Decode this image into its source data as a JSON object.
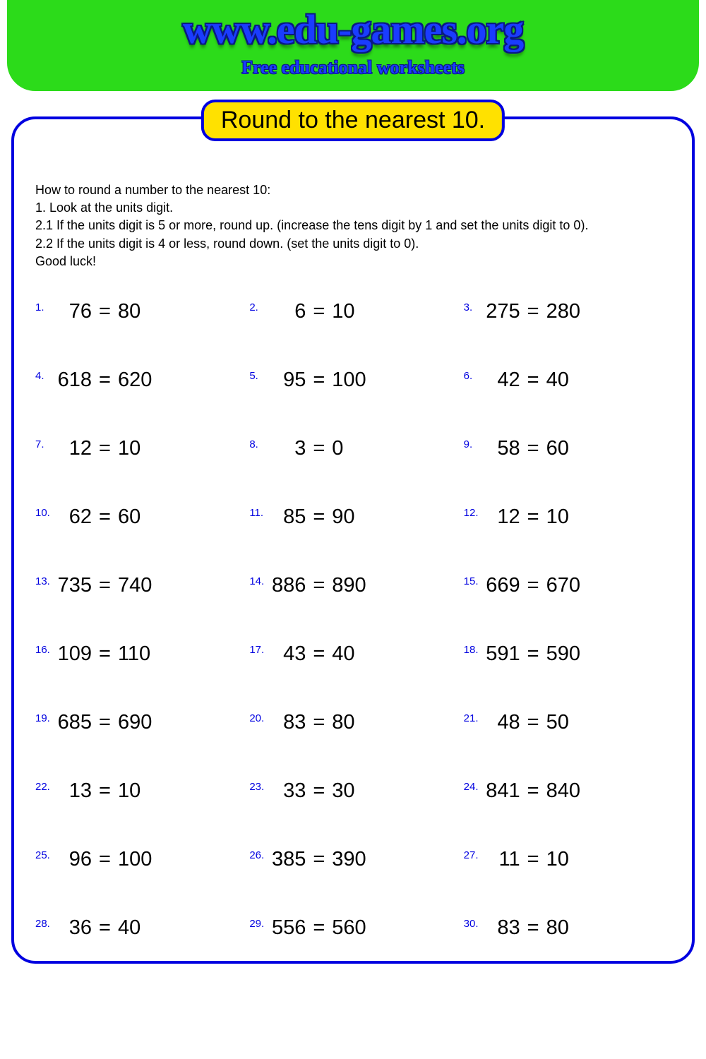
{
  "header": {
    "site_title": "www.edu-games.org",
    "subtitle": "Free educational worksheets"
  },
  "colors": {
    "header_bg": "#2cdb1a",
    "title_blue": "#1a3cff",
    "border_blue": "#0000e0",
    "badge_bg": "#ffe100",
    "number_blue": "#0000e0",
    "text": "#000000",
    "page_bg": "#ffffff"
  },
  "badge": "Round to the nearest 10.",
  "instructions": [
    "How to round a number to the nearest 10:",
    "1. Look at the units digit.",
    "2.1 If the units digit is 5 or more, round up. (increase the tens digit by 1 and set the units digit to 0).",
    "2.2 If the units digit is 4 or less, round down. (set the units digit to 0).",
    "Good luck!"
  ],
  "problems": [
    {
      "n": "1.",
      "lhs": "76",
      "rhs": "80"
    },
    {
      "n": "2.",
      "lhs": "6",
      "rhs": "10"
    },
    {
      "n": "3.",
      "lhs": "275",
      "rhs": "280"
    },
    {
      "n": "4.",
      "lhs": "618",
      "rhs": "620"
    },
    {
      "n": "5.",
      "lhs": "95",
      "rhs": "100"
    },
    {
      "n": "6.",
      "lhs": "42",
      "rhs": "40"
    },
    {
      "n": "7.",
      "lhs": "12",
      "rhs": "10"
    },
    {
      "n": "8.",
      "lhs": "3",
      "rhs": "0"
    },
    {
      "n": "9.",
      "lhs": "58",
      "rhs": "60"
    },
    {
      "n": "10.",
      "lhs": "62",
      "rhs": "60"
    },
    {
      "n": "11.",
      "lhs": "85",
      "rhs": "90"
    },
    {
      "n": "12.",
      "lhs": "12",
      "rhs": "10"
    },
    {
      "n": "13.",
      "lhs": "735",
      "rhs": "740"
    },
    {
      "n": "14.",
      "lhs": "886",
      "rhs": "890"
    },
    {
      "n": "15.",
      "lhs": "669",
      "rhs": "670"
    },
    {
      "n": "16.",
      "lhs": "109",
      "rhs": "110"
    },
    {
      "n": "17.",
      "lhs": "43",
      "rhs": "40"
    },
    {
      "n": "18.",
      "lhs": "591",
      "rhs": "590"
    },
    {
      "n": "19.",
      "lhs": "685",
      "rhs": "690"
    },
    {
      "n": "20.",
      "lhs": "83",
      "rhs": "80"
    },
    {
      "n": "21.",
      "lhs": "48",
      "rhs": "50"
    },
    {
      "n": "22.",
      "lhs": "13",
      "rhs": "10"
    },
    {
      "n": "23.",
      "lhs": "33",
      "rhs": "30"
    },
    {
      "n": "24.",
      "lhs": "841",
      "rhs": "840"
    },
    {
      "n": "25.",
      "lhs": "96",
      "rhs": "100"
    },
    {
      "n": "26.",
      "lhs": "385",
      "rhs": "390"
    },
    {
      "n": "27.",
      "lhs": "11",
      "rhs": "10"
    },
    {
      "n": "28.",
      "lhs": "36",
      "rhs": "40"
    },
    {
      "n": "29.",
      "lhs": "556",
      "rhs": "560"
    },
    {
      "n": "30.",
      "lhs": "83",
      "rhs": "80"
    }
  ],
  "equals": "="
}
